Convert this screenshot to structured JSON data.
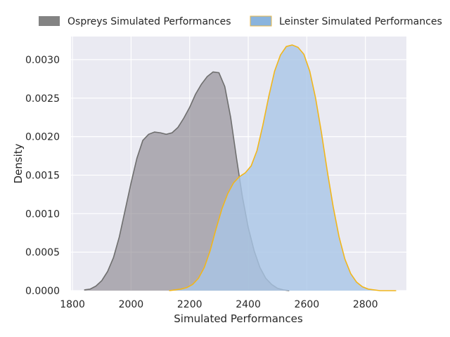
{
  "chart_data": {
    "type": "area",
    "title": "",
    "xlabel": "Simulated Performances",
    "ylabel": "Density",
    "xlim": [
      1795,
      2940
    ],
    "ylim": [
      0,
      0.0033
    ],
    "x_ticks": [
      1800,
      2000,
      2200,
      2400,
      2600,
      2800
    ],
    "x_tick_labels": [
      "1800",
      "2000",
      "2200",
      "2400",
      "2600",
      "2800"
    ],
    "y_ticks": [
      0,
      0.0005,
      0.001,
      0.0015,
      0.002,
      0.0025,
      0.003
    ],
    "y_tick_labels": [
      "0.0000",
      "0.0005",
      "0.0010",
      "0.0015",
      "0.0020",
      "0.0025",
      "0.0030"
    ],
    "grid": true,
    "legend_position": "top",
    "series": [
      {
        "name": "Ospreys Simulated Performances",
        "fill": "#868089",
        "fill_opacity": 0.6,
        "stroke": "#6e6e6e",
        "legend_swatch": "#838383",
        "x": [
          1840,
          1860,
          1880,
          1900,
          1920,
          1940,
          1960,
          1980,
          2000,
          2020,
          2040,
          2060,
          2080,
          2100,
          2120,
          2140,
          2160,
          2180,
          2200,
          2220,
          2240,
          2260,
          2280,
          2300,
          2320,
          2340,
          2360,
          2380,
          2400,
          2420,
          2440,
          2460,
          2480,
          2500,
          2520,
          2540
        ],
        "y": [
          1e-05,
          2e-05,
          6e-05,
          0.00013,
          0.00025,
          0.00043,
          0.0007,
          0.00105,
          0.0014,
          0.00172,
          0.00195,
          0.00203,
          0.00206,
          0.00205,
          0.00203,
          0.00205,
          0.00212,
          0.00224,
          0.00238,
          0.00255,
          0.00268,
          0.00278,
          0.00284,
          0.00283,
          0.00265,
          0.00225,
          0.00172,
          0.00122,
          0.00082,
          0.00052,
          0.0003,
          0.00016,
          8e-05,
          3e-05,
          1e-05,
          0.0
        ]
      },
      {
        "name": "Leinster Simulated Performances",
        "fill": "#a9c5e6",
        "fill_opacity": 0.8,
        "stroke": "#f1b61b",
        "legend_swatch": "#8ab4dd",
        "legend_swatch_stroke": "#e8b84a",
        "x": [
          2130,
          2150,
          2170,
          2190,
          2210,
          2230,
          2250,
          2270,
          2290,
          2310,
          2330,
          2350,
          2370,
          2390,
          2410,
          2430,
          2450,
          2470,
          2490,
          2510,
          2530,
          2550,
          2570,
          2590,
          2610,
          2630,
          2650,
          2670,
          2690,
          2710,
          2730,
          2750,
          2770,
          2790,
          2810,
          2830,
          2850,
          2870,
          2890,
          2905
        ],
        "y": [
          0.0,
          1e-05,
          2e-05,
          4e-05,
          8e-05,
          0.00016,
          0.0003,
          0.00052,
          0.0008,
          0.00106,
          0.00126,
          0.0014,
          0.00148,
          0.00153,
          0.00162,
          0.00182,
          0.00215,
          0.00252,
          0.00285,
          0.00306,
          0.00317,
          0.00319,
          0.00316,
          0.00307,
          0.00285,
          0.0025,
          0.00205,
          0.00155,
          0.00109,
          0.0007,
          0.00041,
          0.00022,
          0.00011,
          5e-05,
          2e-05,
          1e-05,
          0.0,
          0.0,
          0.0,
          0.0
        ]
      }
    ]
  }
}
